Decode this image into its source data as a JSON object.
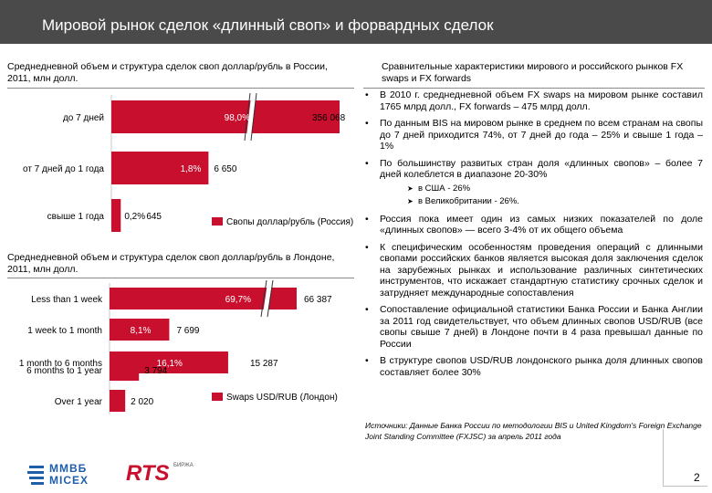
{
  "title": "Мировой рынок сделок «длинный своп» и форвардных сделок",
  "left_top": {
    "title": "Среднедневной объем и структура сделок своп доллар/рубль в России, 2011, млн долл.",
    "legend": "Свопы доллар/рубль (Россия)",
    "accent": "#c8102e"
  },
  "left_bottom": {
    "title": "Среднедневной объем и структура сделок своп доллар/рубль в Лондоне, 2011, млн долл.",
    "legend": "Swaps USD/RUB (Лондон)",
    "accent": "#c8102e"
  },
  "right": {
    "title": "Сравнительные характеристики мирового и российского рынков FX swaps и FX forwards",
    "bullets": [
      "В 2010 г. среднедневной объем FX swaps на мировом рынке составил 1765 млрд долл., FX forwards – 475 млрд долл.",
      "По данным BIS на мировом рынке в среднем по всем странам на свопы до 7 дней приходится 74%, от 7 дней до года – 25% и свыше 1 года – 1%",
      "По большинству развитых стран доля «длинных свопов» – более 7 дней колеблется в диапазоне 20-30%"
    ],
    "sub_bullets": [
      "в США - 26%",
      "в Великобритании - 26%."
    ],
    "bullets2": [
      "Россия пока имеет один из самых низких показателей по доле «длинных свопов» — всего 3-4% от их общего объема",
      "К специфическим особенностям проведения операций с длинными свопами российских банков является высокая доля заключения сделок на зарубежных рынках и использование различных синтетических инструментов, что искажает стандартную статистику срочных сделок и затрудняет международные сопоставления",
      "Сопоставление официальной статистики Банка России и Банка Англии за 2011 год свидетельствует, что объем длинных свопов USD/RUB (все свопы свыше 7 дней) в Лондоне почти в 4 раза превышал данные по России",
      "В структуре свопов USD/RUB лондонского рынка доля длинных свопов составляет более 30%"
    ],
    "bullet_glyph": "•",
    "sub_glyph": "➤"
  },
  "source": "Источники: Данные Банка России по методологии BIS и United Kingdom's Foreign Exchange Joint Standing Committee (FXJSC) за апрель 2011 года",
  "logos": {
    "micex_top": "ММВБ",
    "micex_bottom": "MICEX",
    "rts": "RTS",
    "rts_sub": "БИРЖА"
  },
  "page_number": "2",
  "chart_data": [
    {
      "type": "bar",
      "orientation": "horizontal",
      "categories": [
        "до 7 дней",
        "от 7 дней до 1 года",
        "свыше 1 года"
      ],
      "values": [
        356068,
        6650,
        645
      ],
      "value_labels": [
        "356 068",
        "6 650",
        "645"
      ],
      "percent_labels": [
        "98,0%",
        "1,8%",
        "0,2%"
      ],
      "broken_axis": true,
      "series": [
        {
          "name": "Свопы доллар/рубль (Россия)"
        }
      ]
    },
    {
      "type": "bar",
      "orientation": "horizontal",
      "categories": [
        "Less than 1 week",
        "1 week to 1 month",
        "1 month to 6 months",
        "6 months to 1 year",
        "Over 1 year"
      ],
      "values": [
        66387,
        7699,
        15287,
        3794,
        2020
      ],
      "value_labels": [
        "66 387",
        "7 699",
        "15 287",
        "3 794",
        "2 020"
      ],
      "percent_labels": [
        "69,7%",
        "8,1%",
        "16,1%",
        "",
        ""
      ],
      "broken_axis": true,
      "series": [
        {
          "name": "Swaps USD/RUB (Лондон)"
        }
      ]
    }
  ]
}
